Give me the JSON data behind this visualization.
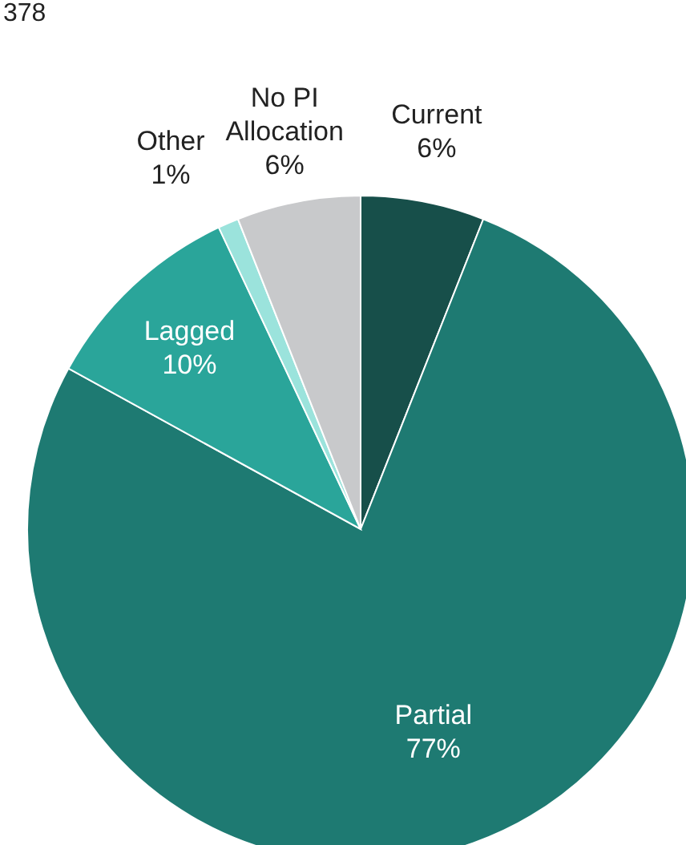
{
  "chart_data": {
    "type": "pie",
    "annotations": [
      "378"
    ],
    "categories": [
      "Current",
      "Partial",
      "Lagged",
      "Other",
      "No PI Allocation"
    ],
    "values": [
      6,
      77,
      10,
      1,
      6
    ],
    "colors": [
      "#174f4a",
      "#1e7a72",
      "#2aa59a",
      "#9be3dc",
      "#c8c9cb"
    ],
    "value_labels": [
      "6%",
      "77%",
      "10%",
      "1%",
      "6%"
    ],
    "legend": false
  }
}
